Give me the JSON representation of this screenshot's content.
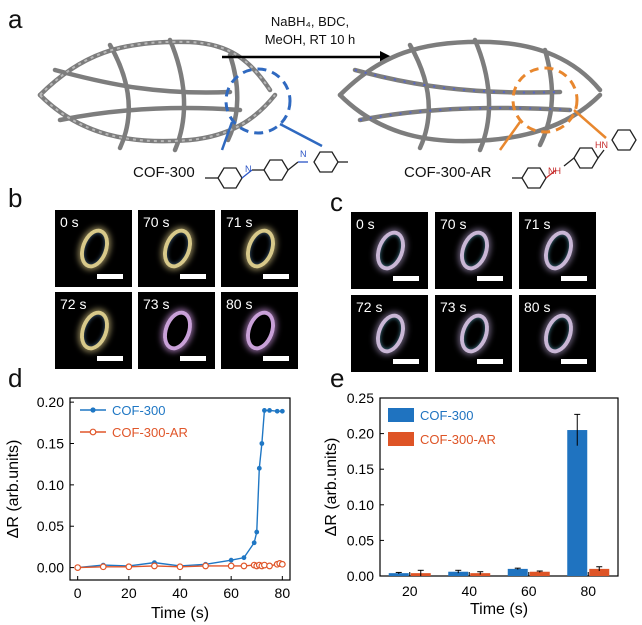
{
  "panel_a": {
    "label": "a",
    "arrow_text_line1": "NaBH₄, BDC,",
    "arrow_text_line2": "MeOH, RT 10 h",
    "left_name": "COF-300",
    "right_name": "COF-300-AR",
    "amine_label": "NH",
    "amine_label2": "HN",
    "imine_label": "N"
  },
  "panel_b": {
    "label": "b",
    "frames": [
      "0 s",
      "70 s",
      "71 s",
      "72 s",
      "73 s",
      "80 s"
    ]
  },
  "panel_c": {
    "label": "c",
    "frames": [
      "0 s",
      "70 s",
      "71 s",
      "72 s",
      "73 s",
      "80 s"
    ]
  },
  "panel_d": {
    "label": "d"
  },
  "panel_e": {
    "label": "e"
  },
  "chart_data": [
    {
      "id": "d",
      "type": "line",
      "xlabel": "Time (s)",
      "ylabel": "ΔR (arb.units)",
      "xlim": [
        -3,
        83
      ],
      "ylim": [
        -0.015,
        0.205
      ],
      "xticks": [
        0,
        20,
        40,
        60,
        80
      ],
      "yticks": [
        0.0,
        0.05,
        0.1,
        0.15,
        0.2
      ],
      "ytick_labels": [
        "0.00",
        "0.05",
        "0.10",
        "0.15",
        "0.20"
      ],
      "legend": "top-left",
      "series": [
        {
          "name": "COF-300",
          "color": "#1f77c4",
          "marker": "filled-circle",
          "x": [
            0,
            10,
            20,
            30,
            40,
            50,
            60,
            65,
            69,
            70,
            71,
            72,
            73,
            75,
            78,
            80
          ],
          "y": [
            0.0,
            0.003,
            0.002,
            0.006,
            0.002,
            0.004,
            0.009,
            0.012,
            0.03,
            0.043,
            0.12,
            0.15,
            0.19,
            0.19,
            0.189,
            0.189
          ]
        },
        {
          "name": "COF-300-AR",
          "color": "#e0562a",
          "marker": "open-circle",
          "x": [
            0,
            10,
            20,
            30,
            40,
            50,
            60,
            65,
            69,
            70,
            71,
            72,
            73,
            75,
            78,
            79,
            80
          ],
          "y": [
            0.0,
            0.001,
            0.001,
            0.002,
            0.001,
            0.002,
            0.002,
            0.002,
            0.003,
            0.002,
            0.003,
            0.002,
            0.003,
            0.002,
            0.004,
            0.005,
            0.004
          ]
        }
      ]
    },
    {
      "id": "e",
      "type": "bar",
      "xlabel": "Time (s)",
      "ylabel": "ΔR (arb.units)",
      "categories": [
        "20",
        "40",
        "60",
        "80"
      ],
      "ylim": [
        0,
        0.25
      ],
      "yticks": [
        0.0,
        0.05,
        0.1,
        0.15,
        0.2,
        0.25
      ],
      "ytick_labels": [
        "0.00",
        "0.05",
        "0.10",
        "0.15",
        "0.20",
        "0.25"
      ],
      "legend": "top-left",
      "series": [
        {
          "name": "COF-300",
          "color": "#1f73c0",
          "values": [
            0.004,
            0.006,
            0.01,
            0.205
          ],
          "errors": [
            0.001,
            0.002,
            0.001,
            0.022
          ]
        },
        {
          "name": "COF-300-AR",
          "color": "#de5426",
          "values": [
            0.004,
            0.004,
            0.006,
            0.01
          ],
          "errors": [
            0.004,
            0.002,
            0.001,
            0.003
          ]
        }
      ]
    }
  ]
}
